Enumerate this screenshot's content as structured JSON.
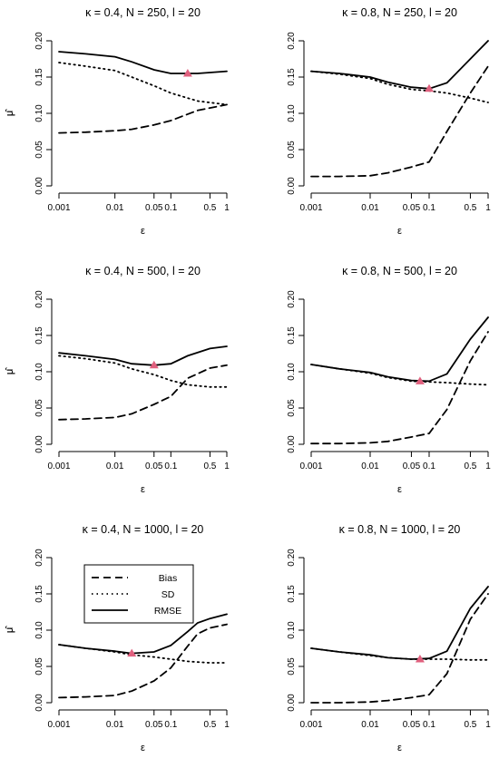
{
  "chart_data": [
    {
      "type": "line",
      "title": "κ = 0.4, N = 250, l = 20",
      "xlabel": "ε",
      "ylabel": "μ̂",
      "x_scale": "log",
      "x": [
        0.001,
        0.003,
        0.01,
        0.02,
        0.05,
        0.1,
        0.3,
        1
      ],
      "x_ticks": [
        "0.001",
        "0.01",
        "0.05",
        "0.1",
        "0.5",
        "1"
      ],
      "y_ticks": [
        "0.00",
        "0.05",
        "0.10",
        "0.15",
        "0.20"
      ],
      "ylim": [
        0,
        0.2
      ],
      "series": [
        {
          "name": "Bias",
          "style": "dashed",
          "values": [
            0.073,
            0.074,
            0.076,
            0.078,
            0.084,
            0.09,
            0.104,
            0.112
          ]
        },
        {
          "name": "SD",
          "style": "dotted",
          "values": [
            0.17,
            0.165,
            0.159,
            0.15,
            0.138,
            0.128,
            0.117,
            0.112
          ]
        },
        {
          "name": "RMSE",
          "style": "solid",
          "values": [
            0.185,
            0.182,
            0.178,
            0.171,
            0.16,
            0.155,
            0.155,
            0.158
          ]
        }
      ],
      "marker": {
        "x": 0.2,
        "y": 0.155,
        "color": "#e0607e"
      }
    },
    {
      "type": "line",
      "title": "κ = 0.8, N = 250, l = 20",
      "xlabel": "ε",
      "ylabel": "μ̂",
      "x_scale": "log",
      "x": [
        0.001,
        0.003,
        0.01,
        0.02,
        0.05,
        0.1,
        0.2,
        0.5,
        1
      ],
      "x_ticks": [
        "0.001",
        "0.01",
        "0.05",
        "0.1",
        "0.5",
        "1"
      ],
      "y_ticks": [
        "0.00",
        "0.05",
        "0.10",
        "0.15",
        "0.20"
      ],
      "ylim": [
        0,
        0.2
      ],
      "series": [
        {
          "name": "Bias",
          "style": "dashed",
          "values": [
            0.013,
            0.013,
            0.014,
            0.018,
            0.026,
            0.033,
            0.075,
            0.128,
            0.165
          ]
        },
        {
          "name": "SD",
          "style": "dotted",
          "values": [
            0.158,
            0.154,
            0.148,
            0.14,
            0.133,
            0.131,
            0.128,
            0.121,
            0.115
          ]
        },
        {
          "name": "RMSE",
          "style": "solid",
          "values": [
            0.158,
            0.155,
            0.15,
            0.143,
            0.136,
            0.134,
            0.142,
            0.175,
            0.2
          ]
        }
      ],
      "marker": {
        "x": 0.1,
        "y": 0.134,
        "color": "#e0607e"
      }
    },
    {
      "type": "line",
      "title": "κ = 0.4, N = 500, l = 20",
      "xlabel": "ε",
      "ylabel": "μ̂",
      "x_scale": "log",
      "x": [
        0.001,
        0.003,
        0.01,
        0.02,
        0.05,
        0.1,
        0.2,
        0.5,
        1
      ],
      "x_ticks": [
        "0.001",
        "0.01",
        "0.05",
        "0.1",
        "0.5",
        "1"
      ],
      "y_ticks": [
        "0.00",
        "0.05",
        "0.10",
        "0.15",
        "0.20"
      ],
      "ylim": [
        0,
        0.2
      ],
      "series": [
        {
          "name": "Bias",
          "style": "dashed",
          "values": [
            0.034,
            0.035,
            0.037,
            0.042,
            0.055,
            0.066,
            0.091,
            0.105,
            0.109
          ]
        },
        {
          "name": "SD",
          "style": "dotted",
          "values": [
            0.122,
            0.118,
            0.112,
            0.104,
            0.096,
            0.088,
            0.082,
            0.079,
            0.079
          ]
        },
        {
          "name": "RMSE",
          "style": "solid",
          "values": [
            0.126,
            0.122,
            0.117,
            0.111,
            0.109,
            0.111,
            0.122,
            0.132,
            0.135
          ]
        }
      ],
      "marker": {
        "x": 0.05,
        "y": 0.109,
        "color": "#e0607e"
      }
    },
    {
      "type": "line",
      "title": "κ = 0.8, N = 500, l = 20",
      "xlabel": "ε",
      "ylabel": "μ̂",
      "x_scale": "log",
      "x": [
        0.001,
        0.003,
        0.01,
        0.02,
        0.05,
        0.1,
        0.2,
        0.5,
        1
      ],
      "x_ticks": [
        "0.001",
        "0.01",
        "0.05",
        "0.1",
        "0.5",
        "1"
      ],
      "y_ticks": [
        "0.00",
        "0.05",
        "0.10",
        "0.15",
        "0.20"
      ],
      "ylim": [
        0,
        0.2
      ],
      "series": [
        {
          "name": "Bias",
          "style": "dashed",
          "values": [
            0.001,
            0.001,
            0.002,
            0.004,
            0.01,
            0.015,
            0.048,
            0.115,
            0.155
          ]
        },
        {
          "name": "SD",
          "style": "dotted",
          "values": [
            0.11,
            0.104,
            0.098,
            0.092,
            0.087,
            0.086,
            0.085,
            0.083,
            0.082
          ]
        },
        {
          "name": "RMSE",
          "style": "solid",
          "values": [
            0.11,
            0.104,
            0.099,
            0.093,
            0.088,
            0.087,
            0.097,
            0.145,
            0.175
          ]
        }
      ],
      "marker": {
        "x": 0.07,
        "y": 0.087,
        "color": "#e0607e"
      }
    },
    {
      "type": "line",
      "title": "κ = 0.4, N = 1000, l = 20",
      "xlabel": "ε",
      "ylabel": "μ̂",
      "x_scale": "log",
      "x": [
        0.001,
        0.003,
        0.01,
        0.02,
        0.05,
        0.1,
        0.2,
        0.3,
        0.5,
        1
      ],
      "x_ticks": [
        "0.001",
        "0.01",
        "0.05",
        "0.1",
        "0.5",
        "1"
      ],
      "y_ticks": [
        "0.00",
        "0.05",
        "0.10",
        "0.15",
        "0.20"
      ],
      "ylim": [
        0,
        0.2
      ],
      "series": [
        {
          "name": "Bias",
          "style": "dashed",
          "values": [
            0.007,
            0.008,
            0.01,
            0.016,
            0.03,
            0.048,
            0.078,
            0.095,
            0.103,
            0.108
          ]
        },
        {
          "name": "SD",
          "style": "dotted",
          "values": [
            0.08,
            0.075,
            0.07,
            0.066,
            0.063,
            0.06,
            0.057,
            0.056,
            0.055,
            0.055
          ]
        },
        {
          "name": "RMSE",
          "style": "solid",
          "values": [
            0.08,
            0.075,
            0.071,
            0.068,
            0.07,
            0.079,
            0.098,
            0.11,
            0.116,
            0.122
          ]
        }
      ],
      "marker": {
        "x": 0.02,
        "y": 0.068,
        "color": "#e0607e"
      },
      "legend": {
        "position": "top-left",
        "entries": [
          "Bias",
          "SD",
          "RMSE"
        ]
      }
    },
    {
      "type": "line",
      "title": "κ = 0.8, N = 1000, l = 20",
      "xlabel": "ε",
      "ylabel": "μ̂",
      "x_scale": "log",
      "x": [
        0.001,
        0.003,
        0.01,
        0.02,
        0.05,
        0.1,
        0.2,
        0.5,
        1
      ],
      "x_ticks": [
        "0.001",
        "0.01",
        "0.05",
        "0.1",
        "0.5",
        "1"
      ],
      "y_ticks": [
        "0.00",
        "0.05",
        "0.10",
        "0.15",
        "0.20"
      ],
      "ylim": [
        0,
        0.2
      ],
      "series": [
        {
          "name": "Bias",
          "style": "dashed",
          "values": [
            0.0,
            0.0,
            0.001,
            0.003,
            0.007,
            0.011,
            0.04,
            0.115,
            0.15
          ]
        },
        {
          "name": "SD",
          "style": "dotted",
          "values": [
            0.075,
            0.07,
            0.065,
            0.062,
            0.06,
            0.06,
            0.06,
            0.059,
            0.059
          ]
        },
        {
          "name": "RMSE",
          "style": "solid",
          "values": [
            0.075,
            0.07,
            0.066,
            0.062,
            0.06,
            0.061,
            0.071,
            0.13,
            0.16
          ]
        }
      ],
      "marker": {
        "x": 0.07,
        "y": 0.06,
        "color": "#e0607e"
      }
    }
  ]
}
